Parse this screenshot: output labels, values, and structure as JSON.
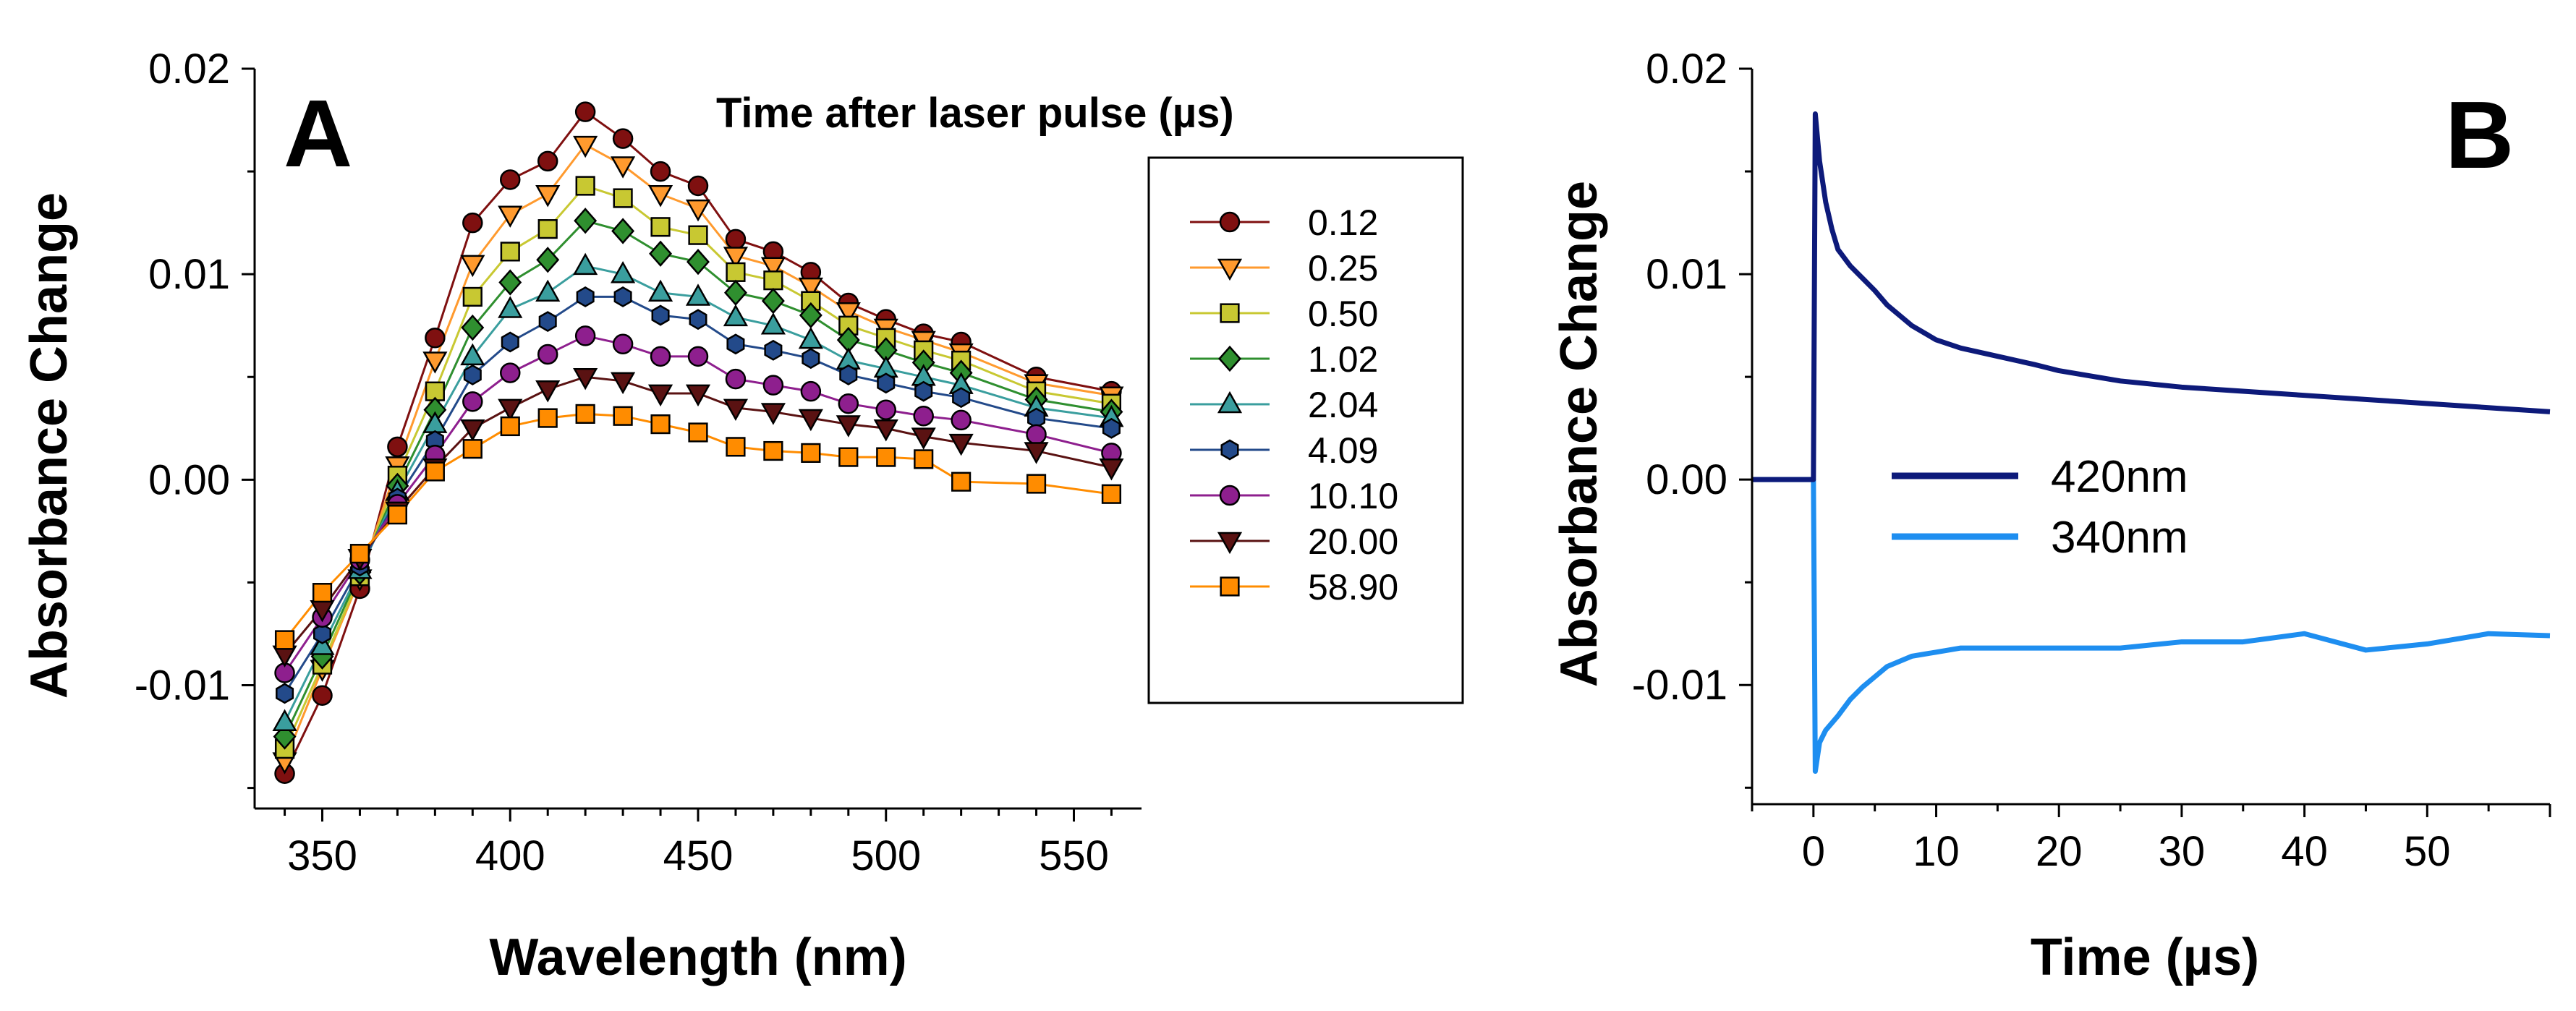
{
  "chart_data": [
    {
      "type": "line",
      "panel": "A",
      "xlabel": "Wavelength (nm)",
      "ylabel": "Absorbance Change",
      "xlim": [
        332,
        568
      ],
      "ylim": [
        -0.016,
        0.02
      ],
      "xticks": [
        350,
        400,
        450,
        500,
        550
      ],
      "xtick_labels": [
        "350",
        "400",
        "450",
        "500",
        "550"
      ],
      "yticks": [
        -0.01,
        0.0,
        0.01,
        0.02
      ],
      "ytick_labels": [
        "-0.01",
        "0.00",
        "0.01",
        "0.02"
      ],
      "legend_title": "Time after laser pulse (µs)",
      "legend_position": "right",
      "x": [
        340,
        350,
        360,
        370,
        380,
        390,
        400,
        410,
        420,
        430,
        440,
        450,
        460,
        470,
        480,
        490,
        500,
        510,
        520,
        540,
        560
      ],
      "series": [
        {
          "name": "0.12",
          "color": "#7f1010",
          "marker": "circle",
          "values": [
            -0.0143,
            -0.0105,
            -0.0053,
            0.0016,
            0.0069,
            0.0125,
            0.0146,
            0.0155,
            0.0179,
            0.0166,
            0.015,
            0.0143,
            0.0117,
            0.0111,
            0.0101,
            0.0086,
            0.0078,
            0.0071,
            0.0067,
            0.005,
            0.0043
          ]
        },
        {
          "name": "0.25",
          "color": "#ff9a2e",
          "marker": "triangle-down",
          "values": [
            -0.0137,
            -0.0092,
            -0.0048,
            0.0007,
            0.0058,
            0.0105,
            0.0129,
            0.0139,
            0.0163,
            0.0153,
            0.0139,
            0.0132,
            0.0109,
            0.0104,
            0.0094,
            0.0082,
            0.0074,
            0.0068,
            0.0062,
            0.0047,
            0.0041
          ]
        },
        {
          "name": "0.50",
          "color": "#c8c832",
          "marker": "square",
          "values": [
            -0.0131,
            -0.009,
            -0.0047,
            0.0002,
            0.0043,
            0.0089,
            0.0111,
            0.0122,
            0.0143,
            0.0137,
            0.0123,
            0.0119,
            0.0101,
            0.0097,
            0.0087,
            0.0075,
            0.0069,
            0.0063,
            0.0058,
            0.0043,
            0.0037
          ]
        },
        {
          "name": "1.02",
          "color": "#2f8f2f",
          "marker": "diamond",
          "values": [
            -0.0125,
            -0.0086,
            -0.0045,
            -0.0003,
            0.0034,
            0.0074,
            0.0096,
            0.0107,
            0.0126,
            0.0121,
            0.011,
            0.0106,
            0.0091,
            0.0087,
            0.008,
            0.0068,
            0.0063,
            0.0057,
            0.0052,
            0.0039,
            0.0033
          ]
        },
        {
          "name": "2.04",
          "color": "#3a9e9e",
          "marker": "triangle-up",
          "values": [
            -0.0118,
            -0.0081,
            -0.0044,
            -0.0006,
            0.0027,
            0.006,
            0.0083,
            0.0091,
            0.0104,
            0.01,
            0.0091,
            0.0089,
            0.0079,
            0.0075,
            0.0068,
            0.0058,
            0.0054,
            0.005,
            0.0046,
            0.0035,
            0.003
          ]
        },
        {
          "name": "4.09",
          "color": "#234a8a",
          "marker": "hexagon",
          "values": [
            -0.0104,
            -0.0075,
            -0.0042,
            -0.0009,
            0.0019,
            0.0051,
            0.0067,
            0.0077,
            0.0089,
            0.0089,
            0.008,
            0.0078,
            0.0066,
            0.0063,
            0.0059,
            0.0051,
            0.0047,
            0.0043,
            0.004,
            0.003,
            0.0025
          ]
        },
        {
          "name": "10.10",
          "color": "#8e1f8e",
          "marker": "circle",
          "values": [
            -0.0094,
            -0.0067,
            -0.0039,
            -0.0012,
            0.0012,
            0.0038,
            0.0052,
            0.0061,
            0.007,
            0.0066,
            0.006,
            0.006,
            0.0049,
            0.0046,
            0.0043,
            0.0037,
            0.0034,
            0.0031,
            0.0029,
            0.0022,
            0.0013
          ]
        },
        {
          "name": "20.00",
          "color": "#5a1212",
          "marker": "triangle-down",
          "values": [
            -0.0085,
            -0.0063,
            -0.0038,
            -0.0015,
            0.0006,
            0.0025,
            0.0035,
            0.0044,
            0.005,
            0.0048,
            0.0042,
            0.0042,
            0.0035,
            0.0033,
            0.003,
            0.0027,
            0.0025,
            0.0021,
            0.0018,
            0.0014,
            0.0006
          ]
        },
        {
          "name": "58.90",
          "color": "#ff8c00",
          "marker": "square",
          "values": [
            -0.0078,
            -0.0055,
            -0.0036,
            -0.0017,
            0.0004,
            0.0015,
            0.0026,
            0.003,
            0.0032,
            0.0031,
            0.0027,
            0.0023,
            0.0016,
            0.0014,
            0.0013,
            0.0011,
            0.0011,
            0.001,
            -0.0001,
            -0.0002,
            -0.0007
          ]
        }
      ]
    },
    {
      "type": "line",
      "panel": "B",
      "xlabel": "Time (µs)",
      "ylabel": "Absorbance Change",
      "xlim": [
        -5,
        60
      ],
      "ylim": [
        -0.0158,
        0.02
      ],
      "xticks": [
        0,
        10,
        20,
        30,
        40,
        50
      ],
      "xtick_labels": [
        "0",
        "10",
        "20",
        "30",
        "40",
        "50"
      ],
      "yticks": [
        -0.01,
        0.0,
        0.01,
        0.02
      ],
      "ytick_labels": [
        "-0.01",
        "0.00",
        "0.01",
        "0.02"
      ],
      "legend_position": "center-left",
      "series": [
        {
          "name": "420nm",
          "color": "#0d1a7a",
          "x": [
            -5,
            -2,
            -0.5,
            0,
            0.15,
            0.5,
            1,
            1.5,
            2,
            3,
            4,
            5,
            6,
            8,
            10,
            12,
            15,
            18,
            20,
            25,
            30,
            35,
            40,
            45,
            50,
            55,
            60
          ],
          "y": [
            0.0,
            0.0,
            0.0,
            0.0,
            0.0178,
            0.0155,
            0.0135,
            0.0122,
            0.0112,
            0.0104,
            0.0098,
            0.0092,
            0.0085,
            0.0075,
            0.0068,
            0.0064,
            0.006,
            0.0056,
            0.0053,
            0.0048,
            0.0045,
            0.0043,
            0.0041,
            0.0039,
            0.0037,
            0.0035,
            0.0033
          ]
        },
        {
          "name": "340nm",
          "color": "#1e8ef0",
          "x": [
            -5,
            -2,
            -0.5,
            0,
            0.15,
            0.5,
            1,
            2,
            3,
            4,
            5,
            6,
            8,
            10,
            12,
            15,
            20,
            25,
            30,
            35,
            40,
            45,
            50,
            55,
            60
          ],
          "y": [
            0.0,
            0.0,
            0.0,
            0.0,
            -0.0142,
            -0.0128,
            -0.0122,
            -0.0115,
            -0.0107,
            -0.0101,
            -0.0096,
            -0.0091,
            -0.0086,
            -0.0084,
            -0.0082,
            -0.0082,
            -0.0082,
            -0.0082,
            -0.0079,
            -0.0079,
            -0.0075,
            -0.0083,
            -0.008,
            -0.0075,
            -0.0076
          ]
        }
      ]
    }
  ]
}
